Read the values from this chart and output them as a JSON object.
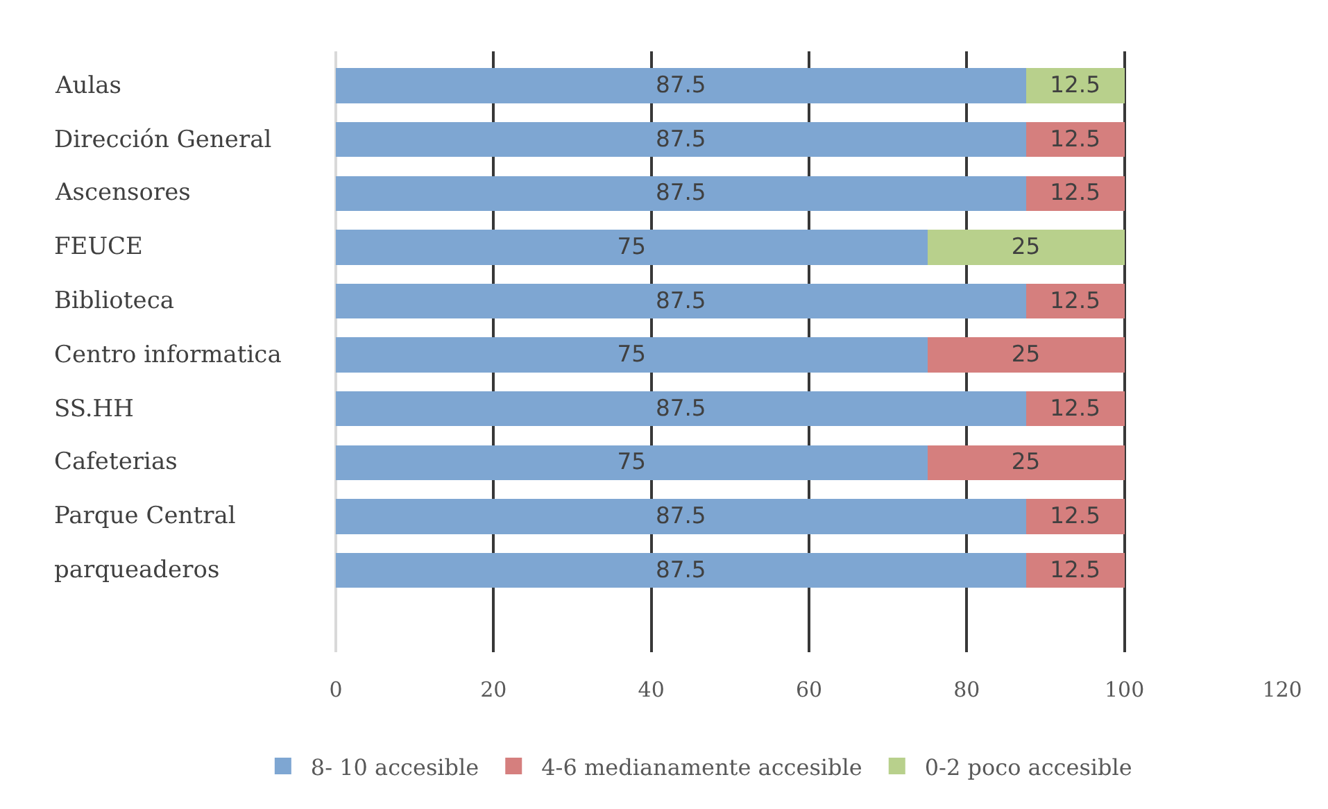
{
  "chart_data": {
    "type": "bar",
    "orientation": "horizontal",
    "stacked": true,
    "categories": [
      "Aulas",
      "Dirección General",
      "Ascensores",
      "FEUCE",
      "Biblioteca",
      "Centro informatica",
      "SS.HH",
      "Cafeterias",
      "Parque Central",
      "parqueaderos"
    ],
    "series": [
      {
        "name": "8- 10 accesible",
        "color": "#7ea6d2",
        "values": [
          87.5,
          87.5,
          87.5,
          75,
          87.5,
          75,
          87.5,
          75,
          87.5,
          87.5
        ]
      },
      {
        "name": "4-6 medianamente accesible",
        "color": "#d57f7e",
        "values": [
          null,
          12.5,
          12.5,
          null,
          12.5,
          25,
          12.5,
          25,
          12.5,
          12.5
        ]
      },
      {
        "name": "0-2 poco accesible",
        "color": "#b8d08c",
        "values": [
          12.5,
          null,
          null,
          25,
          null,
          null,
          null,
          null,
          null,
          null
        ]
      }
    ],
    "xlim": [
      0,
      120
    ],
    "xticks": [
      0,
      20,
      40,
      60,
      80,
      100,
      120
    ],
    "grid": "x",
    "legend": "bottom",
    "data_labels": true
  }
}
